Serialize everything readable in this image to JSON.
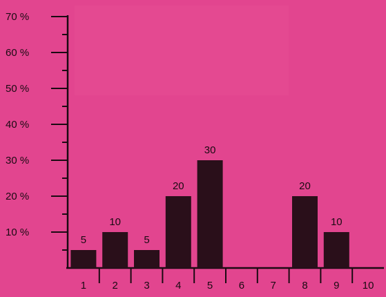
{
  "chart_data": {
    "type": "bar",
    "categories": [
      "1",
      "2",
      "3",
      "4",
      "5",
      "6",
      "7",
      "8",
      "9",
      "10"
    ],
    "values": [
      5,
      10,
      5,
      20,
      30,
      0,
      0,
      20,
      10,
      0
    ],
    "data_labels": [
      "5",
      "10",
      "5",
      "20",
      "30",
      "",
      "",
      "20",
      "10",
      ""
    ],
    "y_ticks": [
      0,
      10,
      20,
      30,
      40,
      50,
      60,
      70
    ],
    "y_tick_labels": [
      "10 %",
      "20 %",
      "30 %",
      "40 %",
      "50 %",
      "60 %",
      "70 %"
    ],
    "ylim": [
      0,
      70
    ],
    "title": "",
    "xlabel": "",
    "ylabel": "",
    "grid": false,
    "colors": {
      "background": "#e2458f",
      "bar": "#2a0f1a",
      "axis": "#1a0a12",
      "text": "#1a0a12"
    }
  }
}
